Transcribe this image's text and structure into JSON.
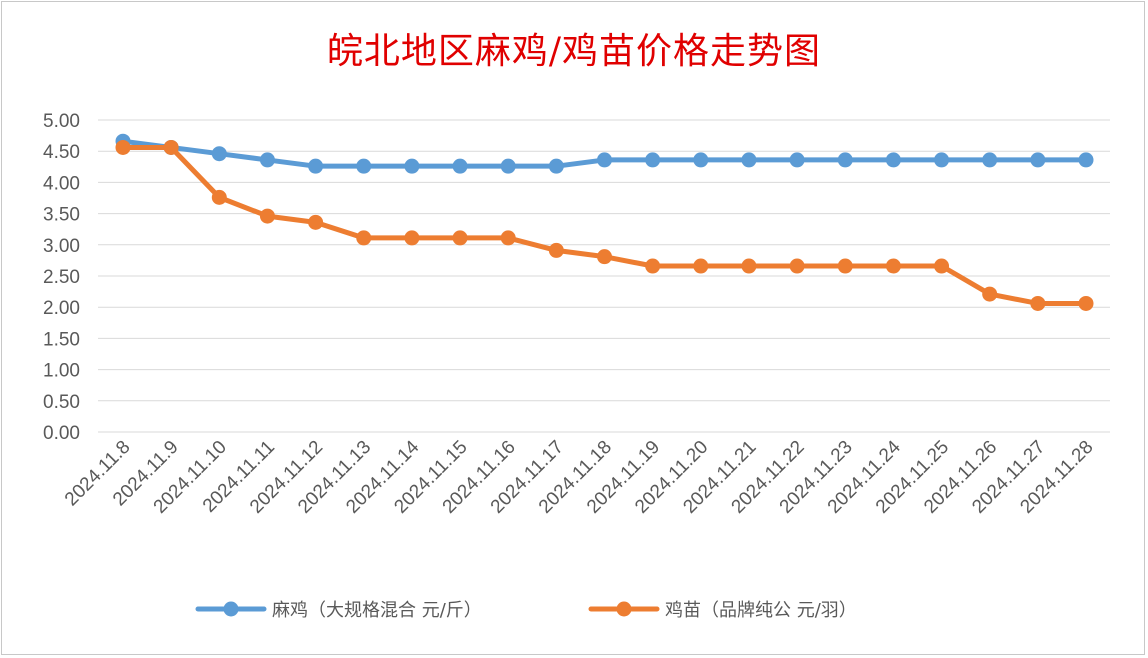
{
  "chart_data": {
    "type": "line",
    "title": "皖北地区麻鸡/鸡苗价格走势图",
    "xlabel": "",
    "ylabel": "",
    "categories": [
      "2024.11.8",
      "2024.11.9",
      "2024.11.10",
      "2024.11.11",
      "2024.11.12",
      "2024.11.13",
      "2024.11.14",
      "2024.11.15",
      "2024.11.16",
      "2024.11.17",
      "2024.11.18",
      "2024.11.19",
      "2024.11.20",
      "2024.11.21",
      "2024.11.22",
      "2024.11.23",
      "2024.11.24",
      "2024.11.25",
      "2024.11.26",
      "2024.11.27",
      "2024.11.28"
    ],
    "yticks": [
      "0.00",
      "0.50",
      "1.00",
      "1.50",
      "2.00",
      "2.50",
      "3.00",
      "3.50",
      "4.00",
      "4.50",
      "5.00"
    ],
    "ylim": [
      0,
      5
    ],
    "grid": true,
    "legend_position": "bottom",
    "series": [
      {
        "name": "麻鸡（大规格混合 元/斤）",
        "color": "#5b9bd5",
        "values": [
          4.66,
          4.56,
          4.46,
          4.36,
          4.26,
          4.26,
          4.26,
          4.26,
          4.26,
          4.26,
          4.36,
          4.36,
          4.36,
          4.36,
          4.36,
          4.36,
          4.36,
          4.36,
          4.36,
          4.36,
          4.36
        ]
      },
      {
        "name": "鸡苗（品牌纯公 元/羽）",
        "color": "#ed7d31",
        "values": [
          4.56,
          4.56,
          3.76,
          3.46,
          3.36,
          3.11,
          3.11,
          3.11,
          3.11,
          2.91,
          2.81,
          2.66,
          2.66,
          2.66,
          2.66,
          2.66,
          2.66,
          2.66,
          2.21,
          2.06,
          2.06
        ]
      }
    ]
  }
}
